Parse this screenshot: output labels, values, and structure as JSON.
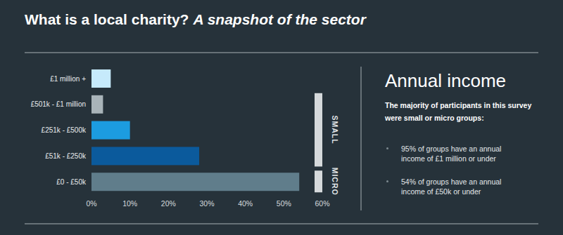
{
  "chart_data": {
    "type": "bar",
    "title": "What is a local charity?",
    "subtitle": "A snapshot of the sector",
    "orientation": "horizontal",
    "categories": [
      "£1 million +",
      "£501k - £1 million",
      "£251k - £500k",
      "£51k - £250k",
      "£0 - £50k"
    ],
    "values": [
      5,
      3,
      10,
      28,
      54
    ],
    "colors": [
      "#c6eafb",
      "#a9b4b9",
      "#1c9ce0",
      "#0b5a9c",
      "#607d8b"
    ],
    "xlim": [
      0,
      60
    ],
    "xticks": [
      {
        "value": 0,
        "label": "0%"
      },
      {
        "value": 10,
        "label": "10%"
      },
      {
        "value": 20,
        "label": "20%"
      },
      {
        "value": 30,
        "label": "30%"
      },
      {
        "value": 40,
        "label": "40%"
      },
      {
        "value": 50,
        "label": "50%"
      },
      {
        "value": 60,
        "label": "60%"
      }
    ],
    "grid": false,
    "annotations": [
      "SMALL",
      "MICRO"
    ]
  },
  "sidebar": {
    "heading": "Annual income",
    "intro": "The majority of participants in this survey were small or micro groups:",
    "bullets": [
      "95% of groups have an annual income of £1 million or under",
      "54% of groups have an annual income of £50k or under"
    ]
  }
}
